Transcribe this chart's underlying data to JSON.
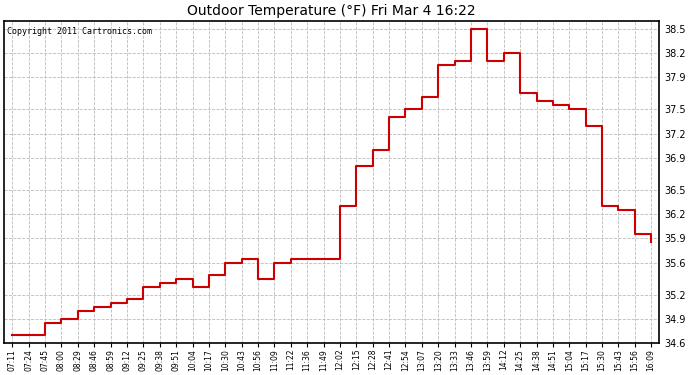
{
  "title": "Outdoor Temperature (°F) Fri Mar 4 16:22",
  "copyright": "Copyright 2011 Cartronics.com",
  "line_color": "#cc0000",
  "bg_color": "#ffffff",
  "plot_bg_color": "#ffffff",
  "grid_color": "#bbbbbb",
  "ylim": [
    34.6,
    38.6
  ],
  "yticks": [
    34.6,
    34.9,
    35.2,
    35.6,
    35.9,
    36.2,
    36.5,
    36.9,
    37.2,
    37.5,
    37.9,
    38.2,
    38.5
  ],
  "x_labels": [
    "07:11",
    "07:24",
    "07:45",
    "08:00",
    "08:29",
    "08:46",
    "08:59",
    "09:12",
    "09:25",
    "09:38",
    "09:51",
    "10:04",
    "10:17",
    "10:30",
    "10:43",
    "10:56",
    "11:09",
    "11:22",
    "11:36",
    "11:49",
    "12:02",
    "12:15",
    "12:28",
    "12:41",
    "12:54",
    "13:07",
    "13:20",
    "13:33",
    "13:46",
    "13:59",
    "14:12",
    "14:25",
    "14:38",
    "14:51",
    "15:04",
    "15:17",
    "15:30",
    "15:43",
    "15:56",
    "16:09"
  ],
  "y_values": [
    34.7,
    34.7,
    34.85,
    34.9,
    35.0,
    35.05,
    35.1,
    35.15,
    35.3,
    35.35,
    35.4,
    35.3,
    35.45,
    35.6,
    35.65,
    35.4,
    35.6,
    35.65,
    35.65,
    35.65,
    36.3,
    36.8,
    37.0,
    37.4,
    37.5,
    37.65,
    38.05,
    38.1,
    38.5,
    38.1,
    38.2,
    37.7,
    37.6,
    37.55,
    37.5,
    37.3,
    36.3,
    36.25,
    35.95,
    35.85
  ]
}
